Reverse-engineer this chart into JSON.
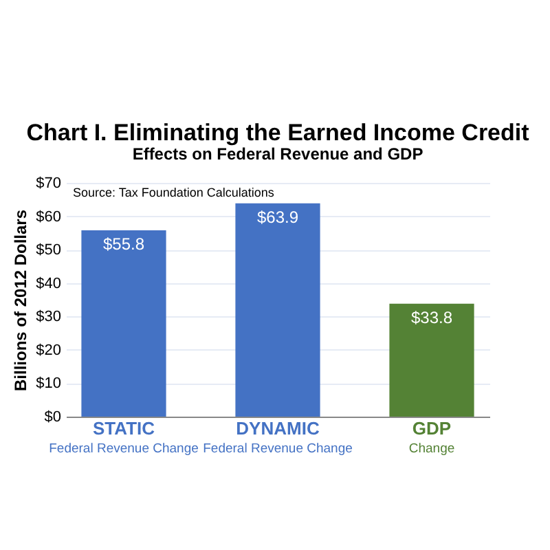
{
  "chart_data": {
    "type": "bar",
    "title": "Chart I. Eliminating the Earned Income Credit",
    "subtitle": "Effects on Federal Revenue and GDP",
    "ylabel": "Billions of 2012 Dollars",
    "categories": [
      "STATIC\nFederal Revenue Change",
      "DYNAMIC\nFederal Revenue Change",
      "GDP\nChange"
    ],
    "values": [
      55.8,
      63.9,
      33.8
    ],
    "colors": [
      "#4472c4",
      "#4472c4",
      "#548235"
    ],
    "value_labels": [
      "$55.8",
      "$63.9",
      "$33.8"
    ],
    "ylim": [
      0,
      70
    ],
    "yticks": [
      {
        "value": 0,
        "label": "$0"
      },
      {
        "value": 10,
        "label": "$10"
      },
      {
        "value": 20,
        "label": "$20"
      },
      {
        "value": 30,
        "label": "$30"
      },
      {
        "value": 40,
        "label": "$40"
      },
      {
        "value": 50,
        "label": "$50"
      },
      {
        "value": 60,
        "label": "$60"
      },
      {
        "value": 70,
        "label": "$70"
      }
    ],
    "grid": "y",
    "annotations": [
      "Source: Tax Foundation Calculations"
    ]
  }
}
